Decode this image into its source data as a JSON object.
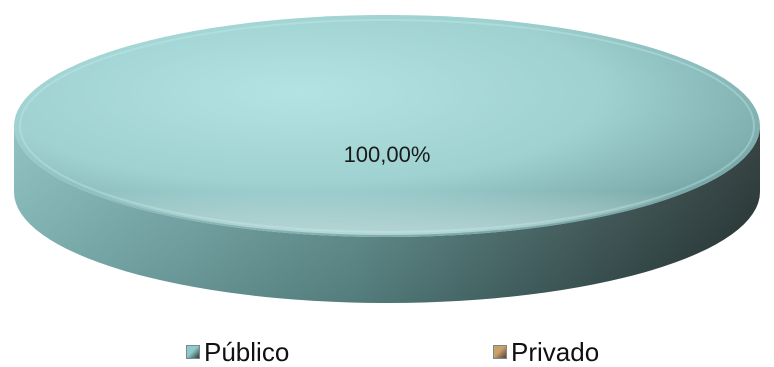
{
  "chart_data": {
    "type": "pie",
    "style": "3d",
    "title": "",
    "categories": [
      "Público",
      "Privado"
    ],
    "values": [
      100.0,
      0.0
    ],
    "data_labels": [
      "100,00%"
    ],
    "colors": {
      "Público": "#8fc9c9",
      "Privado": "#c9a070"
    },
    "legend_position": "bottom",
    "legend": [
      "Público",
      "Privado"
    ]
  }
}
